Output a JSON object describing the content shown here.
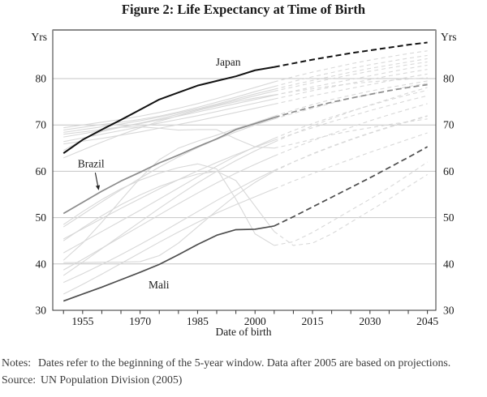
{
  "title": "Figure 2: Life Expectancy at Time of Birth",
  "notes_label": "Notes:",
  "notes_text": "Dates refer to the beginning of the 5-year window. Data after 2005 are based on projections.",
  "source_label": "Source:",
  "source_text": "UN Population Division (2005)",
  "chart_data": {
    "type": "line",
    "title": "Figure 2: Life Expectancy at Time of Birth",
    "xlabel": "Date of birth",
    "ylabel_left": "Yrs",
    "ylabel_right": "Yrs",
    "xlim": [
      1947.2,
      2047.2
    ],
    "ylim": [
      30,
      90.5
    ],
    "x_start_year": 1950,
    "x_step_years": 5,
    "x_tick_labels": [
      1955,
      1970,
      1985,
      2000,
      2015,
      2030,
      2045
    ],
    "x_minor_tick_step": 5,
    "y_tick_labels": [
      30,
      40,
      50,
      60,
      70,
      80
    ],
    "gridline_values": [
      40,
      50,
      60,
      70,
      80
    ],
    "grid": "horizontal-only",
    "legend": "none",
    "projection_start_year": 2005,
    "projection_style": "dashed",
    "colors": {
      "highlight_japan": "#111111",
      "highlight_brazil": "#8c8c8c",
      "highlight_mali": "#4d4d4d",
      "background_line": "#d8d8d8",
      "gridline": "#c4c4c4",
      "axis": "#333333"
    },
    "series": [
      {
        "name": "unlabeled-1",
        "role": "background",
        "values": [
          69.4,
          70.0,
          70.6,
          71.2,
          71.9,
          72.7,
          73.6,
          74.6,
          75.7,
          76.9,
          78.1,
          79.3,
          80.4,
          81.4,
          82.3,
          83.2,
          84.0,
          84.7,
          85.4,
          86.0
        ]
      },
      {
        "name": "unlabeled-2",
        "role": "background",
        "values": [
          68.9,
          69.5,
          70.1,
          70.6,
          71.2,
          71.9,
          72.8,
          73.8,
          74.9,
          76.0,
          77.2,
          78.3,
          79.4,
          80.4,
          81.3,
          82.2,
          83.0,
          83.7,
          84.4,
          85.0
        ]
      },
      {
        "name": "unlabeled-3",
        "role": "background",
        "values": [
          68.4,
          69.0,
          69.6,
          70.2,
          70.9,
          71.7,
          72.6,
          73.5,
          74.5,
          75.6,
          76.7,
          77.7,
          78.7,
          79.6,
          80.5,
          81.4,
          82.2,
          82.9,
          83.6,
          84.3
        ]
      },
      {
        "name": "unlabeled-4",
        "role": "background",
        "values": [
          68.0,
          68.5,
          69.0,
          69.6,
          70.4,
          71.3,
          72.3,
          73.3,
          74.3,
          75.3,
          76.3,
          77.3,
          78.2,
          79.1,
          80.0,
          80.8,
          81.6,
          82.3,
          83.0,
          83.6
        ]
      },
      {
        "name": "unlabeled-5",
        "role": "background",
        "values": [
          67.4,
          68.1,
          68.8,
          69.5,
          70.3,
          71.1,
          71.9,
          72.8,
          73.7,
          74.6,
          75.5,
          76.4,
          77.3,
          78.2,
          79.0,
          79.8,
          80.6,
          81.4,
          82.2,
          82.9
        ]
      },
      {
        "name": "unlabeled-6",
        "role": "background",
        "values": [
          66.4,
          67.2,
          68.0,
          68.8,
          69.6,
          70.4,
          71.2,
          72.0,
          72.9,
          73.8,
          74.7,
          75.6,
          76.5,
          77.4,
          78.2,
          79.0,
          79.8,
          80.6,
          81.3,
          82.0
        ]
      },
      {
        "name": "unlabeled-7",
        "role": "background",
        "values": [
          65.9,
          66.5,
          67.1,
          67.8,
          68.5,
          69.3,
          70.1,
          70.9,
          71.8,
          72.7,
          73.6,
          74.5,
          75.4,
          76.3,
          77.1,
          77.9,
          78.7,
          79.5,
          80.3,
          81.0
        ]
      },
      {
        "name": "unlabeled-8",
        "role": "background",
        "values": [
          62.9,
          64.6,
          66.3,
          67.9,
          69.4,
          70.8,
          72.0,
          73.1,
          74.1,
          75.0,
          75.8,
          76.5,
          77.2,
          77.8,
          78.4,
          78.9,
          79.3,
          79.6,
          79.9,
          80.2
        ]
      },
      {
        "name": "unlabeled-9",
        "role": "background",
        "values": [
          64.5,
          66.8,
          68.6,
          69.5,
          69.6,
          69.3,
          68.9,
          69.0,
          69.0,
          67.0,
          65.3,
          65.0,
          65.9,
          66.9,
          67.9,
          68.7,
          69.4,
          70.1,
          70.7,
          71.3
        ]
      },
      {
        "name": "unlabeled-10",
        "role": "background",
        "values": [
          40.8,
          44.5,
          49.0,
          53.8,
          58.5,
          62.5,
          65.0,
          66.5,
          67.8,
          69.2,
          70.5,
          71.9,
          73.2,
          74.4,
          75.5,
          76.4,
          77.3,
          78.1,
          78.8,
          79.5
        ]
      },
      {
        "name": "unlabeled-11",
        "role": "background",
        "values": [
          40.3,
          40.3,
          40.4,
          40.4,
          40.5,
          41.8,
          44.5,
          48.0,
          51.5,
          54.8,
          57.6,
          60.0,
          62.0,
          63.8,
          65.4,
          66.9,
          68.3,
          69.6,
          70.8,
          72.0
        ]
      },
      {
        "name": "unlabeled-12",
        "role": "background",
        "values": [
          38.7,
          41.0,
          43.4,
          45.8,
          48.2,
          50.6,
          53.0,
          55.3,
          57.5,
          59.6,
          61.5,
          63.3,
          65.0,
          66.6,
          68.1,
          69.5,
          70.9,
          72.2,
          73.4,
          74.6
        ]
      },
      {
        "name": "unlabeled-13",
        "role": "background",
        "values": [
          37.5,
          40.4,
          43.3,
          46.2,
          49.1,
          52.0,
          54.8,
          57.5,
          60.0,
          62.3,
          64.4,
          66.3,
          68.1,
          69.8,
          71.4,
          72.9,
          74.3,
          75.6,
          76.9,
          78.1
        ]
      },
      {
        "name": "unlabeled-14",
        "role": "background",
        "values": [
          42.4,
          44.7,
          47.0,
          49.3,
          51.6,
          54.0,
          56.4,
          58.8,
          61.1,
          63.3,
          65.3,
          67.1,
          68.8,
          70.3,
          71.7,
          73.0,
          74.2,
          75.4,
          76.5,
          77.5
        ]
      },
      {
        "name": "unlabeled-15",
        "role": "background",
        "values": [
          48.0,
          50.7,
          53.4,
          56.0,
          58.5,
          60.9,
          63.1,
          65.1,
          66.9,
          68.5,
          70.0,
          71.3,
          72.5,
          73.6,
          74.7,
          75.7,
          76.6,
          77.5,
          78.3,
          79.0
        ]
      },
      {
        "name": "unlabeled-16",
        "role": "background",
        "values": [
          45.4,
          47.6,
          49.8,
          52.0,
          54.1,
          56.2,
          58.2,
          60.1,
          61.9,
          63.6,
          65.2,
          66.7,
          68.1,
          69.4,
          70.7,
          71.9,
          73.1,
          74.2,
          75.3,
          76.3
        ]
      },
      {
        "name": "unlabeled-17",
        "role": "background",
        "values": [
          36.0,
          37.9,
          39.9,
          42.0,
          44.2,
          46.5,
          48.9,
          51.3,
          53.7,
          56.0,
          58.2,
          60.2,
          62.0,
          63.7,
          65.3,
          66.8,
          68.2,
          69.5,
          70.7,
          71.9
        ]
      },
      {
        "name": "unlabeled-18",
        "role": "background",
        "values": [
          48.5,
          51.3,
          53.9,
          56.2,
          58.1,
          59.6,
          60.8,
          61.6,
          60.5,
          54.0,
          46.5,
          44.0,
          44.8,
          46.8,
          49.2,
          51.6,
          54.0,
          56.5,
          59.2,
          62.0
        ]
      },
      {
        "name": "unlabeled-19",
        "role": "background",
        "values": [
          45.0,
          47.8,
          50.4,
          52.8,
          54.9,
          56.7,
          58.2,
          59.4,
          60.0,
          58.0,
          52.5,
          47.0,
          44.0,
          44.5,
          46.5,
          49.0,
          51.5,
          54.0,
          56.7,
          59.3
        ]
      },
      {
        "name": "unlabeled-20",
        "role": "background",
        "values": [
          33.5,
          35.6,
          37.8,
          40.1,
          42.4,
          44.7,
          46.9,
          49.0,
          51.0,
          52.8,
          54.5,
          56.2,
          57.9,
          59.5,
          61.1,
          62.6,
          64.1,
          65.5,
          66.9,
          68.3
        ]
      },
      {
        "name": "Mali",
        "role": "highlight",
        "color": "#4d4d4d",
        "width": 1.7,
        "values": [
          32.0,
          33.5,
          35.0,
          36.6,
          38.2,
          39.9,
          42.0,
          44.2,
          46.2,
          47.4,
          47.5,
          48.2,
          50.2,
          52.3,
          54.4,
          56.5,
          58.6,
          60.8,
          63.0,
          65.3
        ]
      },
      {
        "name": "Brazil",
        "role": "highlight",
        "color": "#8c8c8c",
        "width": 1.7,
        "values": [
          50.9,
          53.3,
          55.7,
          57.9,
          59.8,
          61.8,
          63.5,
          65.3,
          67.0,
          69.0,
          70.3,
          71.6,
          72.8,
          73.9,
          74.9,
          75.8,
          76.6,
          77.4,
          78.1,
          78.7
        ]
      },
      {
        "name": "Japan",
        "role": "highlight",
        "color": "#111111",
        "width": 2.0,
        "values": [
          63.9,
          66.8,
          69.0,
          71.1,
          73.3,
          75.5,
          77.0,
          78.5,
          79.5,
          80.5,
          81.8,
          82.5,
          83.3,
          84.1,
          84.8,
          85.5,
          86.1,
          86.7,
          87.3,
          87.8
        ]
      }
    ],
    "annotations": [
      {
        "text": "Japan",
        "year": 1993.0,
        "value": 82.8,
        "anchor": "middle"
      },
      {
        "text": "Brazil",
        "year": 1957.2,
        "value": 60.9,
        "anchor": "middle",
        "arrow": {
          "from_year": 1958.3,
          "from_value": 59.7,
          "to_year": 1959.2,
          "to_value": 55.9
        }
      },
      {
        "text": "Mali",
        "year": 1974.9,
        "value": 34.7,
        "anchor": "middle"
      }
    ]
  }
}
